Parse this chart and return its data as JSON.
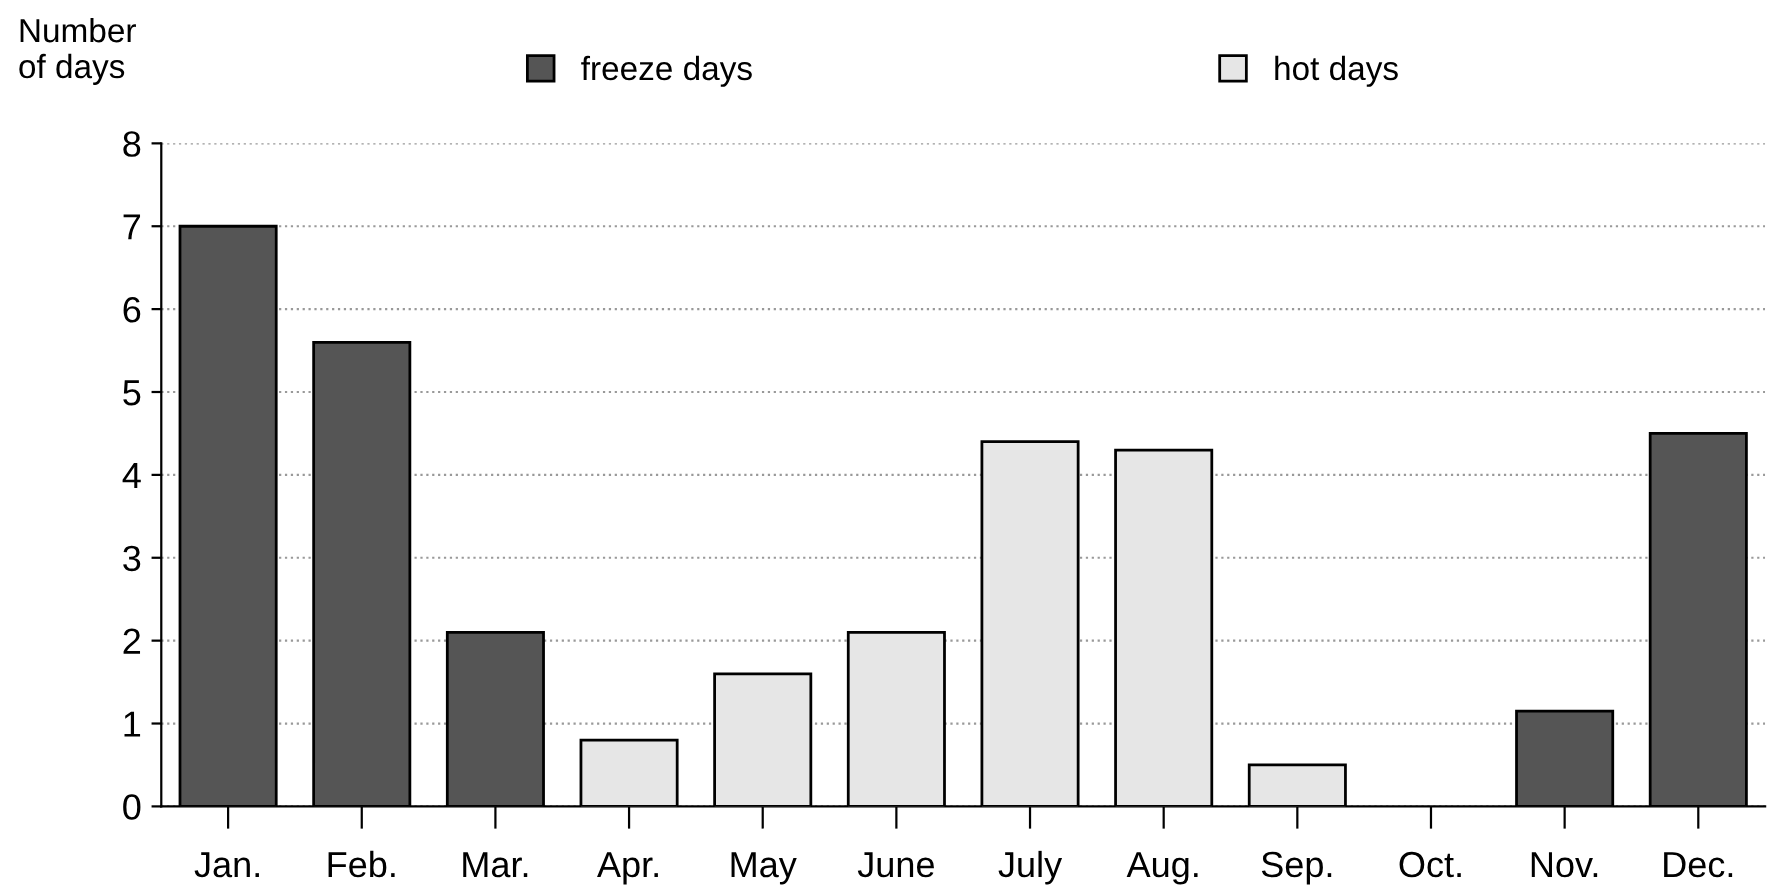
{
  "chart_data": {
    "type": "bar",
    "ylabel": "Number\nof days",
    "categories": [
      "Jan.",
      "Feb.",
      "Mar.",
      "Apr.",
      "May",
      "June",
      "July",
      "Aug.",
      "Sep.",
      "Oct.",
      "Nov.",
      "Dec."
    ],
    "series": [
      {
        "name": "freeze days",
        "color": "#555555",
        "values": [
          7,
          5.6,
          2.1,
          null,
          null,
          null,
          null,
          null,
          null,
          null,
          1.15,
          4.5
        ]
      },
      {
        "name": "hot days",
        "color": "#e6e6e6",
        "values": [
          null,
          null,
          null,
          0.8,
          1.6,
          2.1,
          4.4,
          4.3,
          0.5,
          null,
          null,
          null
        ]
      }
    ],
    "ylim": [
      0,
      8
    ],
    "yticks": [
      0,
      1,
      2,
      3,
      4,
      5,
      6,
      7,
      8
    ],
    "grid": "y",
    "legend": "top"
  }
}
